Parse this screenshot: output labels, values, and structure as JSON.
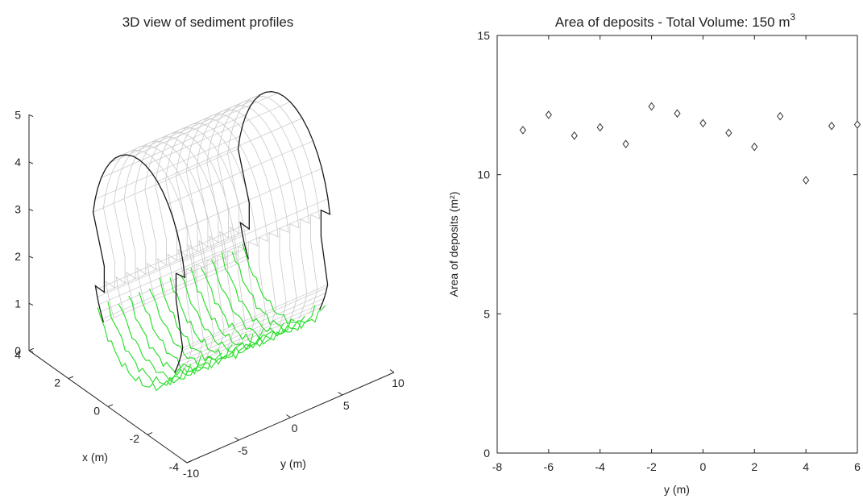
{
  "chart_data": [
    {
      "type": "surface3d",
      "title": "3D view of sediment profiles",
      "xlabel": "x (m)",
      "ylabel": "y (m)",
      "zlabel": "",
      "xlim": [
        -4,
        4
      ],
      "ylim": [
        -10,
        10
      ],
      "zlim": [
        0,
        5
      ],
      "x_ticks": [
        "4",
        "2",
        "0",
        "-2",
        "-4"
      ],
      "y_ticks": [
        "-10",
        "-5",
        "0",
        "5",
        "10"
      ],
      "z_ticks": [
        "0",
        "1",
        "2",
        "3",
        "4",
        "5"
      ],
      "surface_color": "#c8c8c8",
      "outline_color": "#1a1a1a",
      "profile_color": "#22dd22"
    },
    {
      "type": "scatter",
      "title": "Area of deposits - Total Volume: 150 m",
      "title_superscript": "3",
      "xlabel": "y (m)",
      "ylabel": "Area of deposits (m²)",
      "xlim": [
        -8,
        6
      ],
      "ylim": [
        0,
        15
      ],
      "x_ticks": [
        "-8",
        "-6",
        "-4",
        "-2",
        "0",
        "2",
        "4",
        "6"
      ],
      "y_ticks": [
        "0",
        "5",
        "10",
        "15"
      ],
      "marker": "diamond",
      "x": [
        -7,
        -6,
        -5,
        -4,
        -3,
        -2,
        -1,
        0,
        1,
        2,
        3,
        4,
        5,
        6
      ],
      "y": [
        11.6,
        12.15,
        11.4,
        11.7,
        11.1,
        12.45,
        12.2,
        11.85,
        11.5,
        11.0,
        12.1,
        9.8,
        11.75,
        11.8
      ]
    }
  ]
}
